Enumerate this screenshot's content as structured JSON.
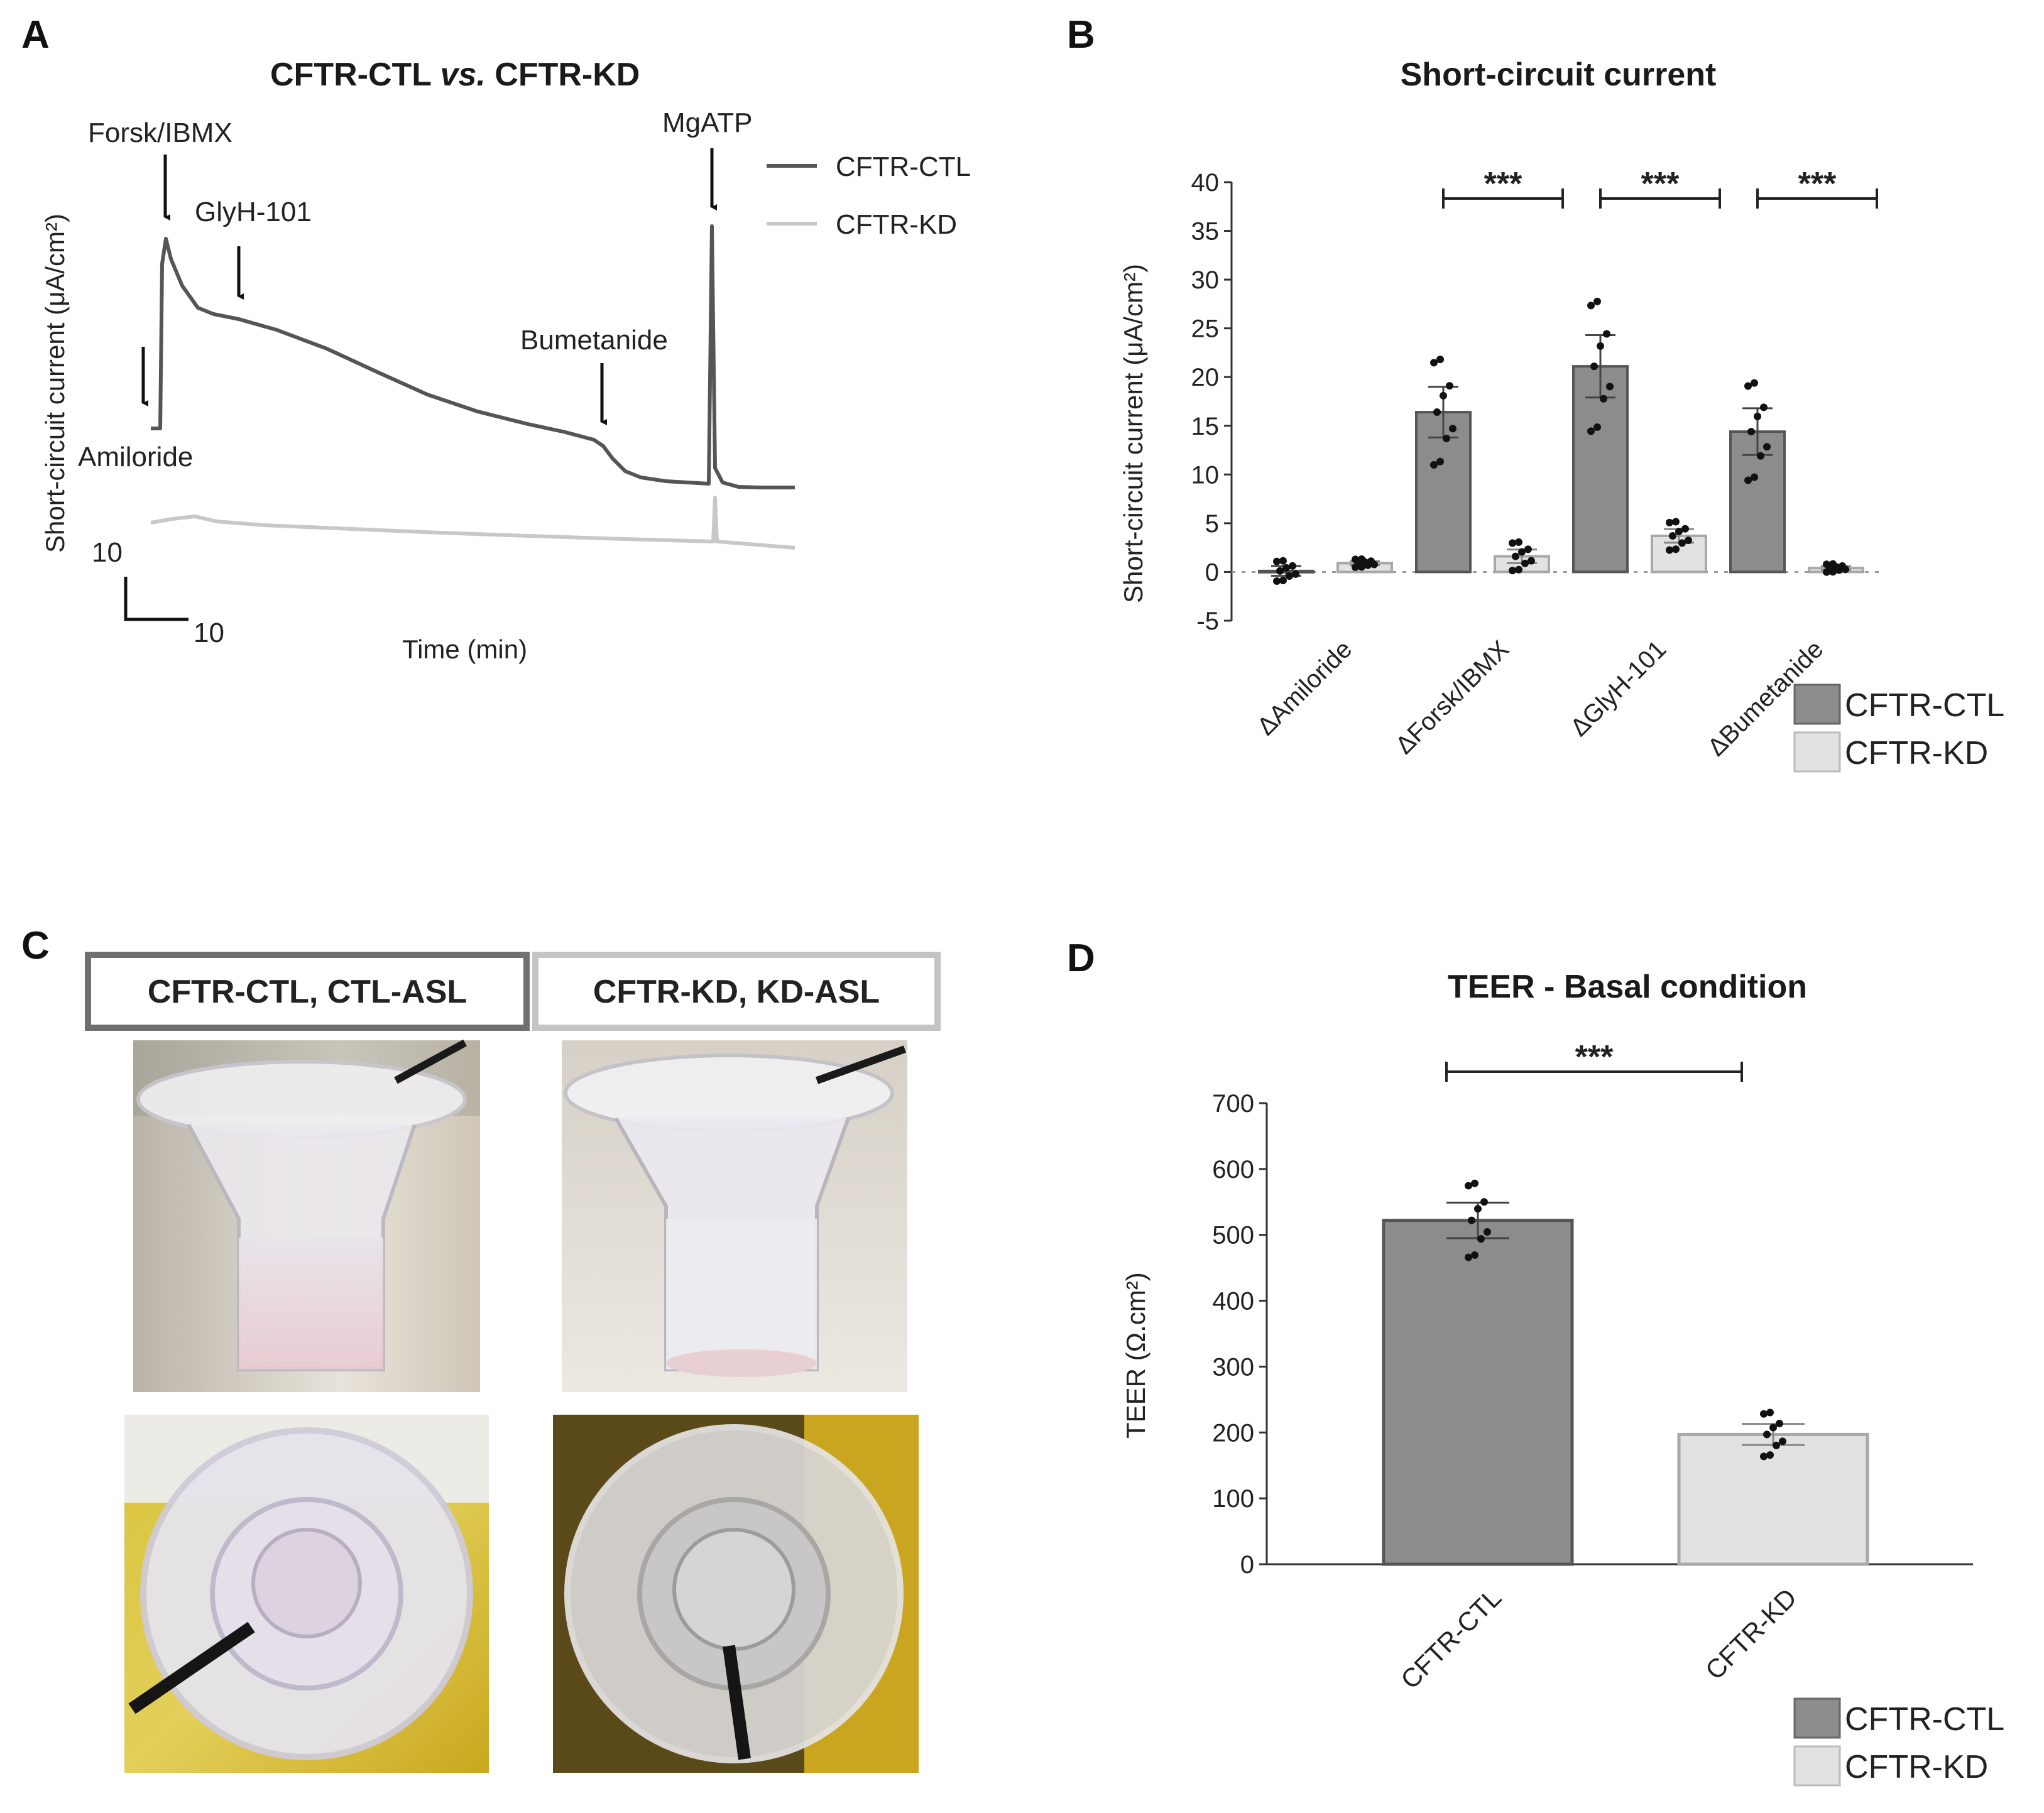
{
  "panel_labels": [
    "A",
    "B",
    "C",
    "D"
  ],
  "colors": {
    "ctl": "#8c8c8c",
    "kd": "#e2e2e2",
    "ctl_trace": "#555555",
    "kd_trace": "#c8c8c8"
  },
  "panelA": {
    "title_prefix": "CFTR-CTL ",
    "title_vs": "vs.",
    "title_suffix": " CFTR-KD",
    "ylabel": "Short-circuit current (μA/cm²)",
    "xlabel": "Time (min)",
    "scale_y": "10",
    "scale_x": "10",
    "legend": [
      "CFTR-CTL",
      "CFTR-KD"
    ],
    "annotations": [
      "Forsk/IBMX",
      "GlyH-101",
      "Bumetanide",
      "MgATP",
      "Amiloride"
    ]
  },
  "panelC": {
    "labels": [
      "CFTR-CTL,  CTL-ASL",
      "CFTR-KD,  KD-ASL"
    ]
  },
  "chart_data": [
    {
      "type": "bar",
      "title": "Short-circuit current",
      "xlabel": "",
      "ylabel": "Short-circuit current (μA/cm²)",
      "ylim": [
        -5,
        40
      ],
      "yticks": [
        40,
        35,
        30,
        25,
        20,
        15,
        10,
        5,
        0,
        -5
      ],
      "categories": [
        "ΔAmiloride",
        "ΔForsk/IBMX",
        "ΔGlyH-101",
        "ΔBumetanide"
      ],
      "series": [
        {
          "name": "CFTR-CTL",
          "values": [
            0.1,
            16.4,
            21.1,
            14.4
          ],
          "sem": [
            0.5,
            2.6,
            3.2,
            2.4
          ]
        },
        {
          "name": "CFTR-KD",
          "values": [
            0.9,
            1.6,
            3.7,
            0.4
          ],
          "sem": [
            0.2,
            0.7,
            0.7,
            0.2
          ]
        }
      ],
      "significance": [
        "***",
        "***",
        "***"
      ],
      "legend": [
        "CFTR-CTL",
        "CFTR-KD"
      ]
    },
    {
      "type": "bar",
      "title": "TEER - Basal condition",
      "xlabel": "",
      "ylabel": "TEER (Ω.cm²)",
      "ylim": [
        0,
        700
      ],
      "yticks": [
        700,
        600,
        500,
        400,
        300,
        200,
        100,
        0
      ],
      "categories": [
        "CFTR-CTL",
        "CFTR-KD"
      ],
      "series": [
        {
          "name": "TEER",
          "values": [
            522,
            197
          ],
          "sem": [
            27,
            16
          ]
        }
      ],
      "significance": [
        "***"
      ],
      "legend": [
        "CFTR-CTL",
        "CFTR-KD"
      ]
    }
  ]
}
